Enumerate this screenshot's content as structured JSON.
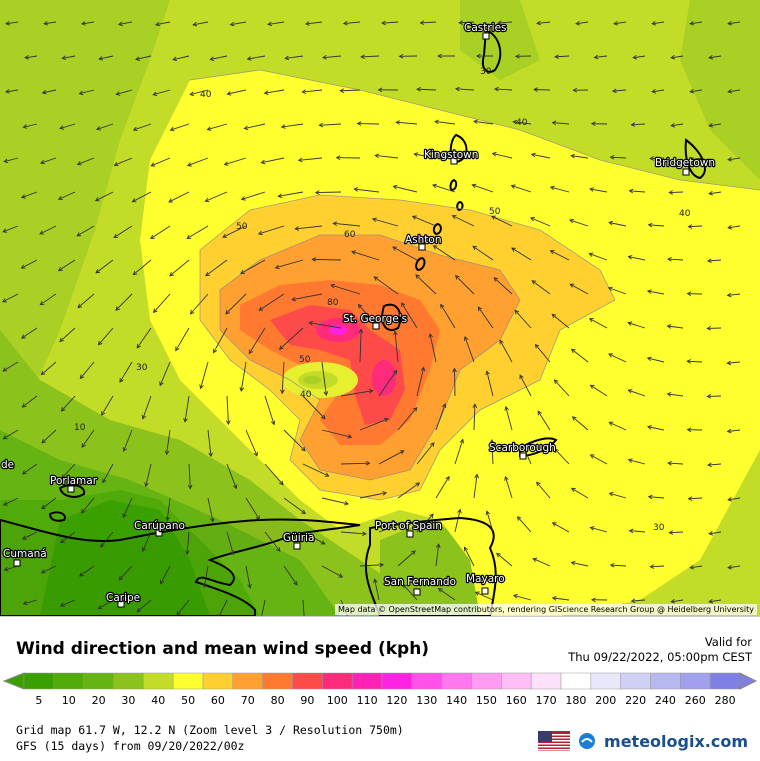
{
  "legend": {
    "title": "Wind direction and mean wind speed (kph)",
    "valid_label": "Valid for",
    "valid_time": "Thu 09/22/2022, 05:00pm CEST",
    "scale": [
      {
        "value": "5",
        "color": "#3aa000"
      },
      {
        "value": "10",
        "color": "#50aa0a"
      },
      {
        "value": "20",
        "color": "#66b414"
      },
      {
        "value": "30",
        "color": "#8cc21c"
      },
      {
        "value": "40",
        "color": "#c2dc28"
      },
      {
        "value": "50",
        "color": "#ffff30"
      },
      {
        "value": "60",
        "color": "#ffd030"
      },
      {
        "value": "70",
        "color": "#ffa030"
      },
      {
        "value": "80",
        "color": "#ff7a30"
      },
      {
        "value": "90",
        "color": "#ff4a4a"
      },
      {
        "value": "100",
        "color": "#ff2a7a"
      },
      {
        "value": "110",
        "color": "#ff22b4"
      },
      {
        "value": "120",
        "color": "#ff22e0"
      },
      {
        "value": "130",
        "color": "#ff50e8"
      },
      {
        "value": "140",
        "color": "#ff78ee"
      },
      {
        "value": "150",
        "color": "#ff9cf2"
      },
      {
        "value": "160",
        "color": "#ffbef6"
      },
      {
        "value": "170",
        "color": "#ffe0fa"
      },
      {
        "value": "180",
        "color": "#ffffff"
      },
      {
        "value": "200",
        "color": "#e8e8fa"
      },
      {
        "value": "220",
        "color": "#d0d0f4"
      },
      {
        "value": "240",
        "color": "#b8b8f0"
      },
      {
        "value": "260",
        "color": "#a0a0ec"
      },
      {
        "value": "280",
        "color": "#8080e4"
      }
    ]
  },
  "meta": {
    "grid": "Grid map 61.7 W, 12.2 N (Zoom level 3 / Resolution 750m)",
    "model": "GFS (15 days) from  09/20/2022/00z"
  },
  "brand": "meteologix.com",
  "map_credit": "Map data © OpenStreetMap contributors, rendering GIScience Research Group @ Heidelberg University",
  "cities": [
    {
      "name": "Castries"
    },
    {
      "name": "Kingstown"
    },
    {
      "name": "Bridgetown"
    },
    {
      "name": "Ashton"
    },
    {
      "name": "St. George's"
    },
    {
      "name": "Scarborough"
    },
    {
      "name": "Porlamar"
    },
    {
      "name": "Carúpano"
    },
    {
      "name": "Güiria"
    },
    {
      "name": "Port of Spain"
    },
    {
      "name": "Cumaná"
    },
    {
      "name": "San Fernando"
    },
    {
      "name": "Mayaro"
    },
    {
      "name": "Caripe"
    },
    {
      "name": "de"
    }
  ],
  "contour_labels": [
    "40",
    "40",
    "50",
    "60",
    "80",
    "50",
    "40",
    "30",
    "10",
    "50",
    "40",
    "30",
    "30"
  ]
}
